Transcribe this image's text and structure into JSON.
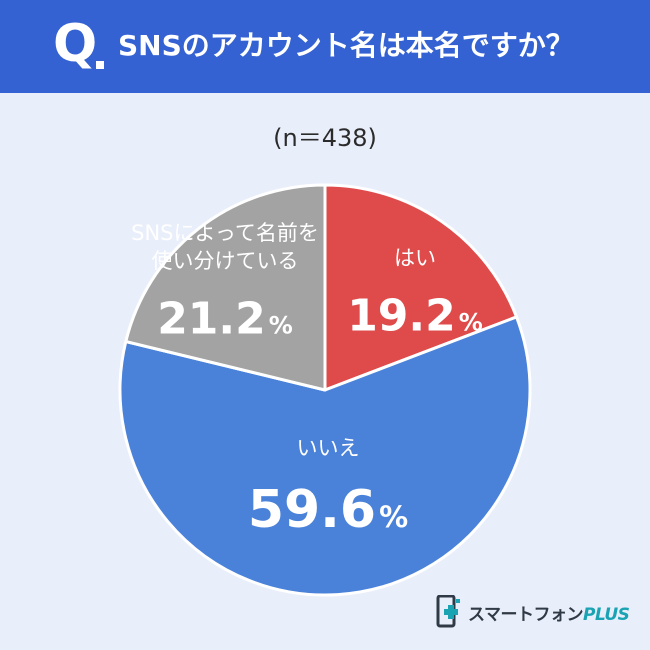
{
  "header": {
    "q_mark": "Q",
    "question": "SNSのアカウント名は本名ですか？"
  },
  "sample_size": "(n＝438)",
  "colors": {
    "header_bg": "#3562d2",
    "background": "#e9eefb",
    "hai": "#df4b4b",
    "iie": "#4a82da",
    "tsukaiwake": "#a3a3a3"
  },
  "chart_data": {
    "type": "pie",
    "title": "SNSのアカウント名は本名ですか？",
    "n_label": "(n＝438)",
    "slices": [
      {
        "label": "はい",
        "value": 19.2,
        "display": "19.2",
        "unit": "%",
        "color": "#df4b4b"
      },
      {
        "label": "いいえ",
        "value": 59.6,
        "display": "59.6",
        "unit": "%",
        "color": "#4a82da"
      },
      {
        "label_lines": [
          "SNSによって名前を",
          "使い分けている"
        ],
        "value": 21.2,
        "display": "21.2",
        "unit": "%",
        "color": "#a3a3a3"
      }
    ]
  },
  "logo": {
    "main": "スマートフォン",
    "plus": "PLUS",
    "icon": "smartphone-plus-logo-icon"
  }
}
